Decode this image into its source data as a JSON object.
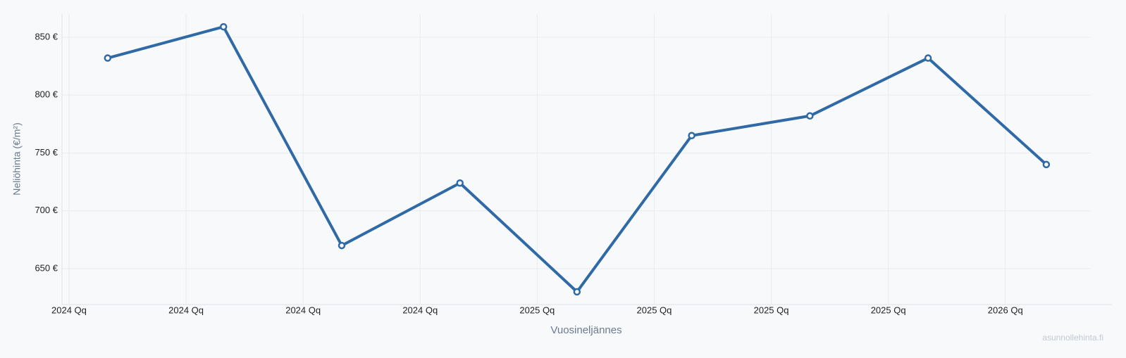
{
  "chart_data": {
    "type": "line",
    "x_label": "Vuosineljännes",
    "y_label": "Neliöhinta (€/m²)",
    "watermark": "asunnollehinta.fi",
    "x": [
      0.33,
      1.32,
      2.33,
      3.34,
      4.34,
      5.32,
      6.33,
      7.34,
      8.35
    ],
    "series": [
      {
        "color": "#306aa6",
        "values": [
          832,
          859,
          670,
          724,
          630,
          765,
          782,
          832,
          740
        ]
      }
    ],
    "xlim": [
      -0.06,
      8.73
    ],
    "xticks": [
      {
        "value": 0,
        "label": "2024 Qq"
      },
      {
        "value": 1,
        "label": "2024 Qq"
      },
      {
        "value": 2,
        "label": "2024 Qq"
      },
      {
        "value": 3,
        "label": "2024 Qq"
      },
      {
        "value": 4,
        "label": "2025 Qq"
      },
      {
        "value": 5,
        "label": "2025 Qq"
      },
      {
        "value": 6,
        "label": "2025 Qq"
      },
      {
        "value": 7,
        "label": "2025 Qq"
      },
      {
        "value": 8,
        "label": "2026 Qq"
      }
    ],
    "ylim": [
      619,
      870
    ],
    "yticks": [
      {
        "value": 650,
        "label": "650 €"
      },
      {
        "value": 700,
        "label": "700 €"
      },
      {
        "value": 750,
        "label": "750 €"
      },
      {
        "value": 800,
        "label": "800 €"
      },
      {
        "value": 850,
        "label": "850 €"
      }
    ],
    "grid": true
  }
}
